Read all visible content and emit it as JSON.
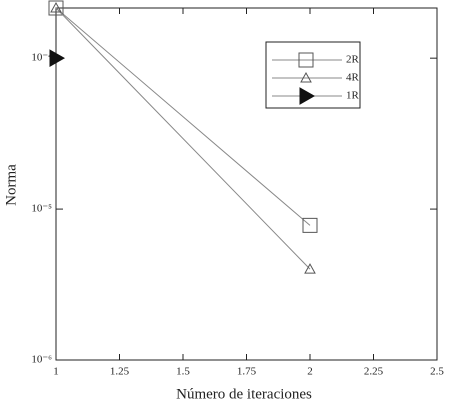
{
  "chart_data": {
    "type": "line",
    "x_label": "Número de iteraciones",
    "y_label": "Norma",
    "xlim": [
      1,
      2.5
    ],
    "xticks": [
      1,
      1.25,
      1.5,
      1.75,
      2,
      2.25,
      2.5
    ],
    "ylim": [
      1e-06,
      0.000215
    ],
    "log_y": true,
    "yticks": [
      {
        "value": 0.0001,
        "label": "10⁻⁴"
      },
      {
        "value": 1e-05,
        "label": "10⁻⁵"
      },
      {
        "value": 1e-06,
        "label": "10⁻⁶"
      }
    ],
    "grid": false,
    "legend": "upper right",
    "series": [
      {
        "name": "2R",
        "color": "#555555",
        "marker": "square",
        "x": [
          1,
          2
        ],
        "values": [
          0.000215,
          7.8e-06
        ]
      },
      {
        "name": "4R",
        "color": "#555555",
        "marker": "triangle",
        "x": [
          1,
          2
        ],
        "values": [
          0.000215,
          4e-06
        ]
      },
      {
        "name": "1R",
        "color": "#111111",
        "marker": "right-triangle",
        "x": [
          1
        ],
        "values": [
          0.0001
        ]
      }
    ]
  }
}
